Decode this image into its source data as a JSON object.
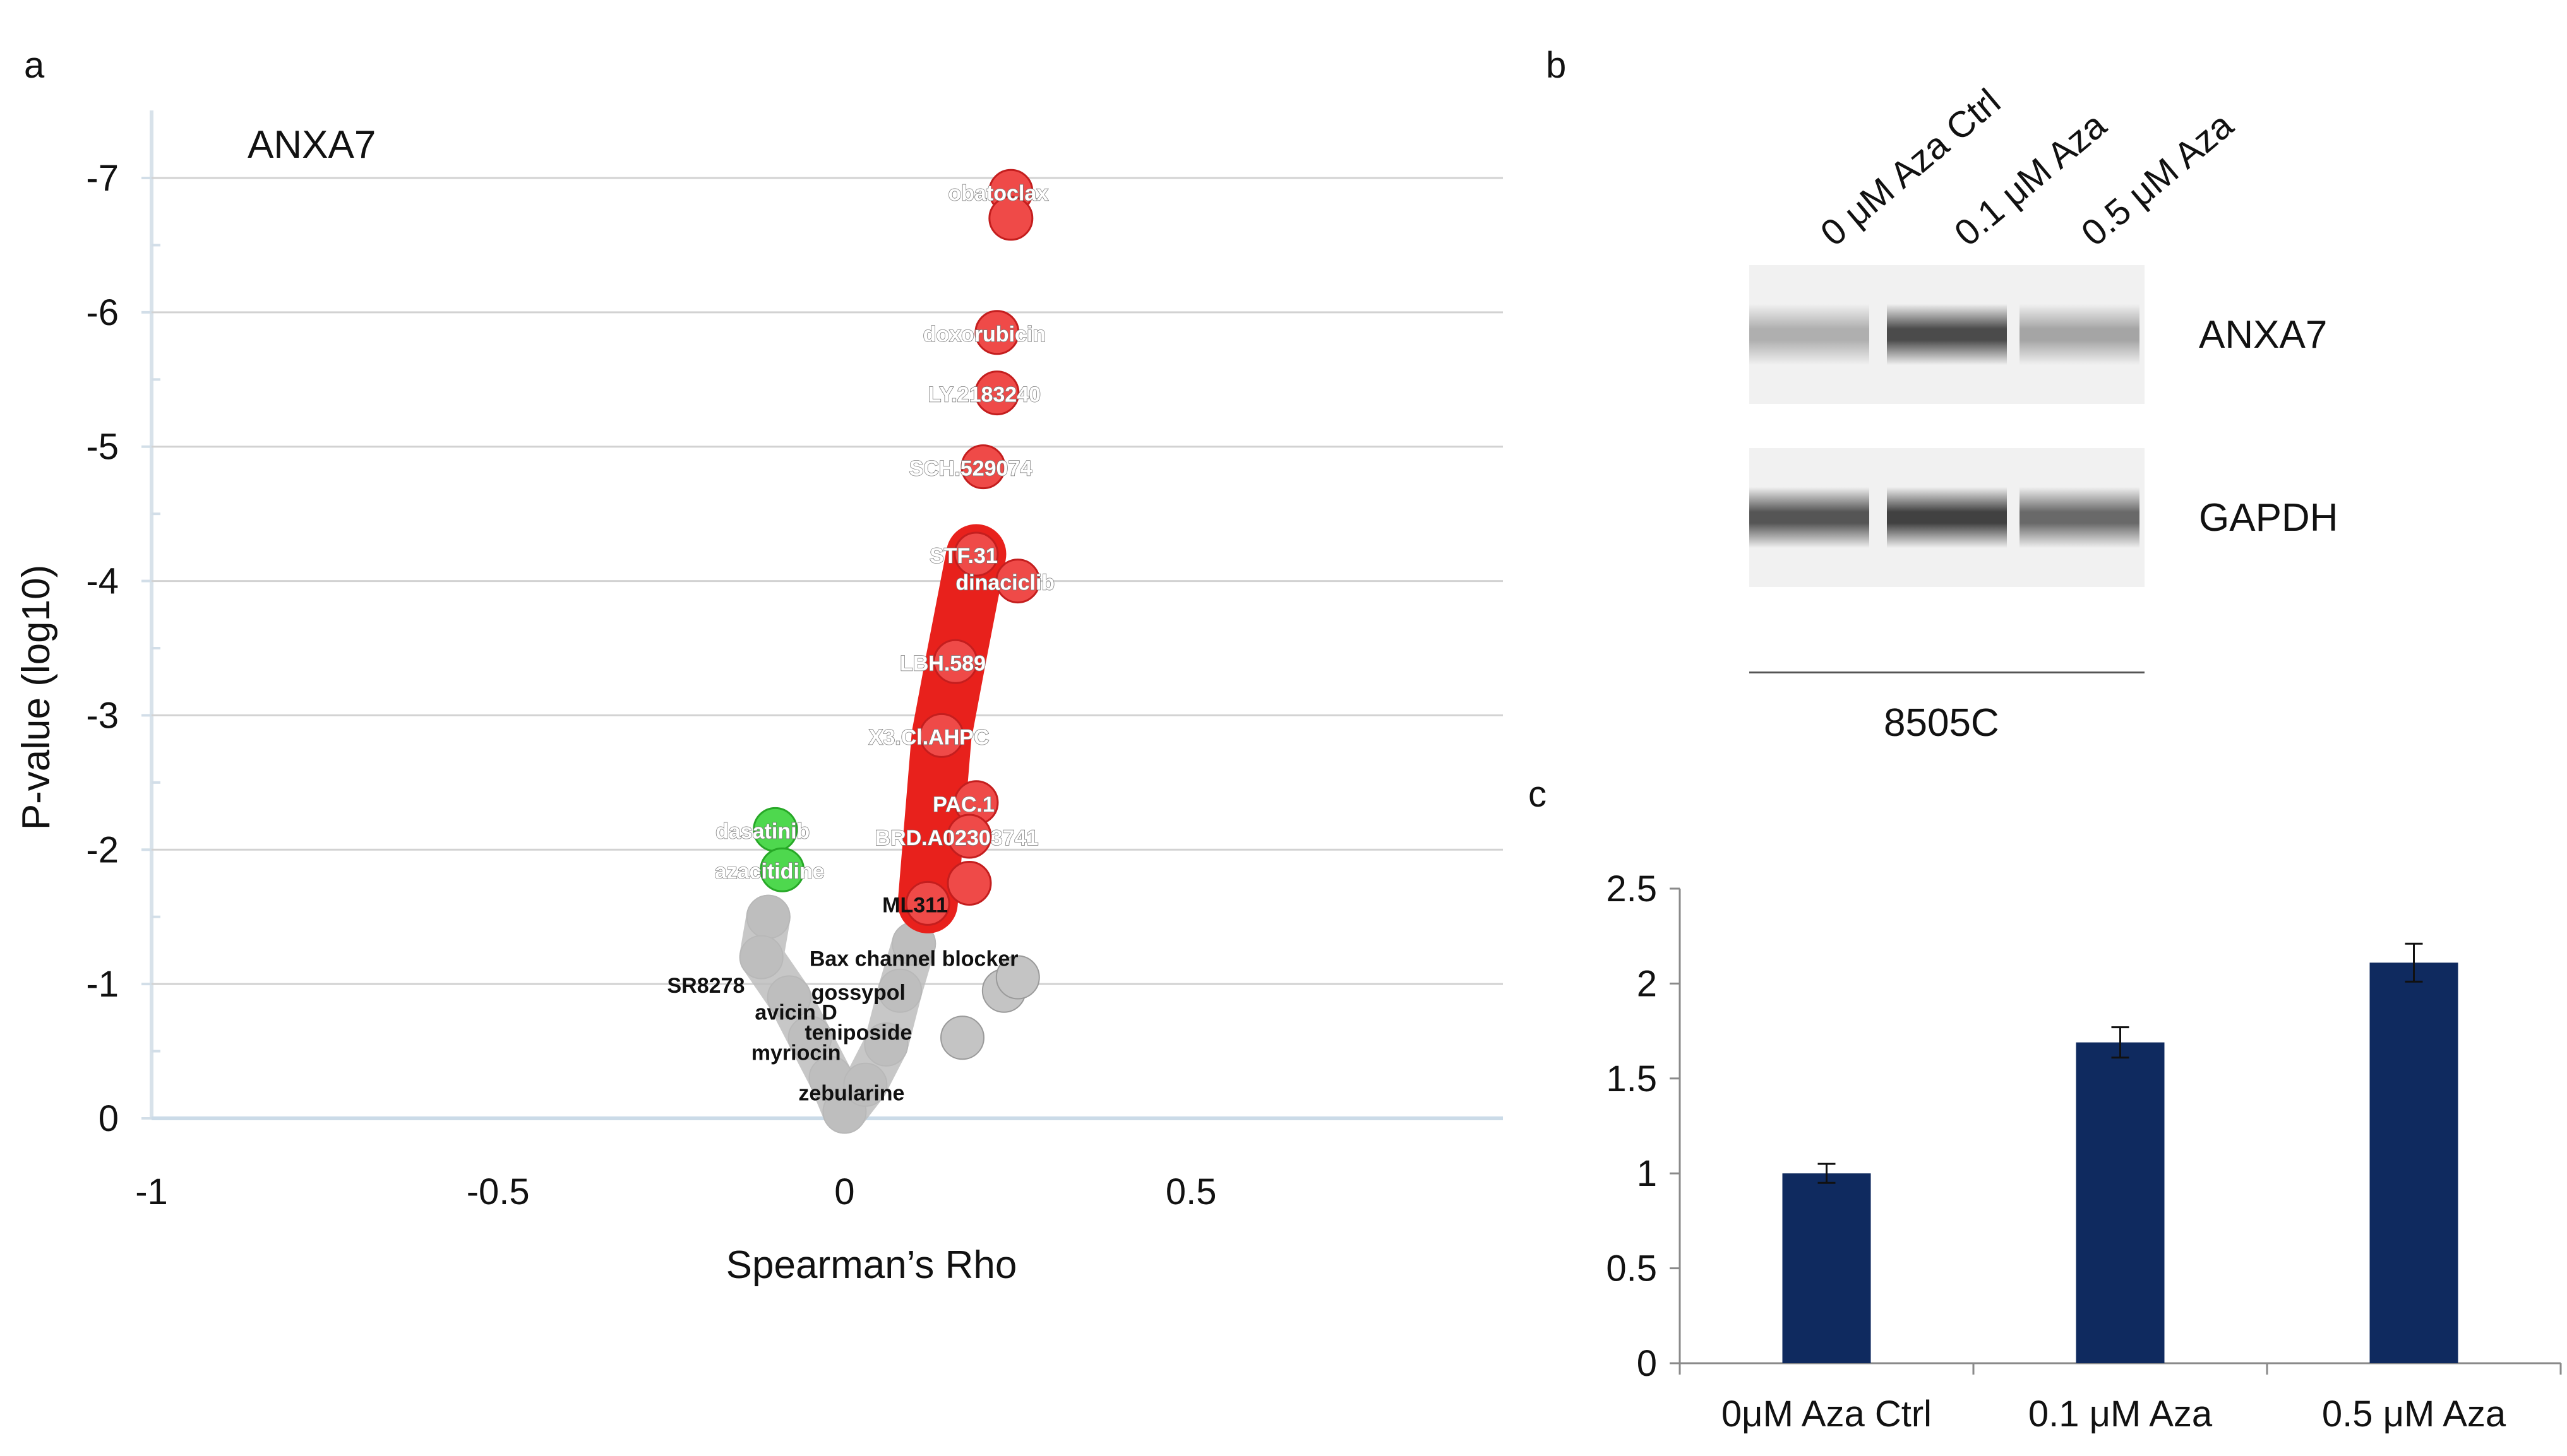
{
  "panels": {
    "a": "a",
    "b": "b",
    "c": "c"
  },
  "chart_data": [
    {
      "type": "scatter",
      "panel": "a",
      "title": "ANXA7",
      "xlabel": "Spearman’s Rho",
      "ylabel": "P-value (log10)",
      "xlim": [
        -1,
        0.95
      ],
      "ylim": [
        0,
        -7.5
      ],
      "x_ticks": [
        "-1",
        "-0.5",
        "0",
        "0.5"
      ],
      "y_ticks": [
        "-7",
        "-6",
        "-5",
        "-4",
        "-3",
        "-2",
        "-1",
        "0"
      ],
      "grid": true,
      "series": [
        {
          "color": "#e53030",
          "points": [
            {
              "x": 0.24,
              "y": -6.9,
              "label": "obatoclax"
            },
            {
              "x": 0.24,
              "y": -6.7,
              "label": ""
            },
            {
              "x": 0.22,
              "y": -5.85,
              "label": "doxorubicin"
            },
            {
              "x": 0.22,
              "y": -5.4,
              "label": "LY.2183240"
            },
            {
              "x": 0.2,
              "y": -4.85,
              "label": "SCH.529074"
            },
            {
              "x": 0.19,
              "y": -4.2,
              "label": "STF.31"
            },
            {
              "x": 0.25,
              "y": -4.0,
              "label": "dinaciclib"
            },
            {
              "x": 0.16,
              "y": -3.4,
              "label": "LBH.589"
            },
            {
              "x": 0.14,
              "y": -2.85,
              "label": "X3.Cl.AHPC"
            },
            {
              "x": 0.19,
              "y": -2.35,
              "label": "PAC.1"
            },
            {
              "x": 0.18,
              "y": -2.1,
              "label": "BRD.A02303741"
            },
            {
              "x": 0.18,
              "y": -1.75,
              "label": ""
            },
            {
              "x": 0.12,
              "y": -1.6,
              "label": "ML311"
            }
          ]
        },
        {
          "color": "#3ad43a",
          "points": [
            {
              "x": -0.1,
              "y": -2.15,
              "label": "dasatinib"
            },
            {
              "x": -0.09,
              "y": -1.85,
              "label": "azacitidine"
            }
          ]
        },
        {
          "color": "#bdbdbd",
          "points": [
            {
              "x": -0.11,
              "y": -1.5,
              "label": ""
            },
            {
              "x": -0.12,
              "y": -1.2,
              "label": ""
            },
            {
              "x": -0.08,
              "y": -0.9,
              "label": ""
            },
            {
              "x": -0.05,
              "y": -0.6,
              "label": ""
            },
            {
              "x": -0.02,
              "y": -0.3,
              "label": ""
            },
            {
              "x": 0.0,
              "y": -0.05,
              "label": ""
            },
            {
              "x": 0.03,
              "y": -0.25,
              "label": ""
            },
            {
              "x": 0.06,
              "y": -0.55,
              "label": ""
            },
            {
              "x": 0.08,
              "y": -0.95,
              "label": ""
            },
            {
              "x": 0.1,
              "y": -1.3,
              "label": ""
            },
            {
              "x": 0.23,
              "y": -0.95,
              "label": ""
            },
            {
              "x": 0.25,
              "y": -1.05,
              "label": ""
            },
            {
              "x": 0.17,
              "y": -0.6,
              "label": ""
            }
          ]
        }
      ],
      "annotations": [
        {
          "text": "Bax channel blocker",
          "x": 0.1,
          "y": -1.2
        },
        {
          "text": "SR8278",
          "x": -0.2,
          "y": -1.0
        },
        {
          "text": "gossypol",
          "x": 0.02,
          "y": -0.95
        },
        {
          "text": "avicin D",
          "x": -0.07,
          "y": -0.8
        },
        {
          "text": "teniposide",
          "x": 0.02,
          "y": -0.65
        },
        {
          "text": "myriocin",
          "x": -0.07,
          "y": -0.5
        },
        {
          "text": "zebularine",
          "x": 0.01,
          "y": -0.2
        }
      ]
    },
    {
      "type": "bar",
      "panel": "c",
      "categories": [
        "0μM Aza Ctrl",
        "0.1 μM Aza",
        "0.5 μM Aza"
      ],
      "values": [
        1.0,
        1.69,
        2.11
      ],
      "errors": [
        0.05,
        0.08,
        0.1
      ],
      "ylim": [
        0,
        2.5
      ],
      "y_ticks": [
        "0",
        "0.5",
        "1",
        "1.5",
        "2",
        "2.5"
      ],
      "bar_color": "#0f2a5f",
      "grid": false
    }
  ],
  "blot": {
    "lanes": [
      "0 μM Aza Ctrl",
      "0.1 μM Aza",
      "0.5 μM Aza"
    ],
    "rows": [
      {
        "protein": "ANXA7",
        "intensities": [
          0.3,
          0.8,
          0.35
        ]
      },
      {
        "protein": "GAPDH",
        "intensities": [
          0.75,
          0.85,
          0.65
        ]
      }
    ],
    "cell_line": "8505C"
  }
}
